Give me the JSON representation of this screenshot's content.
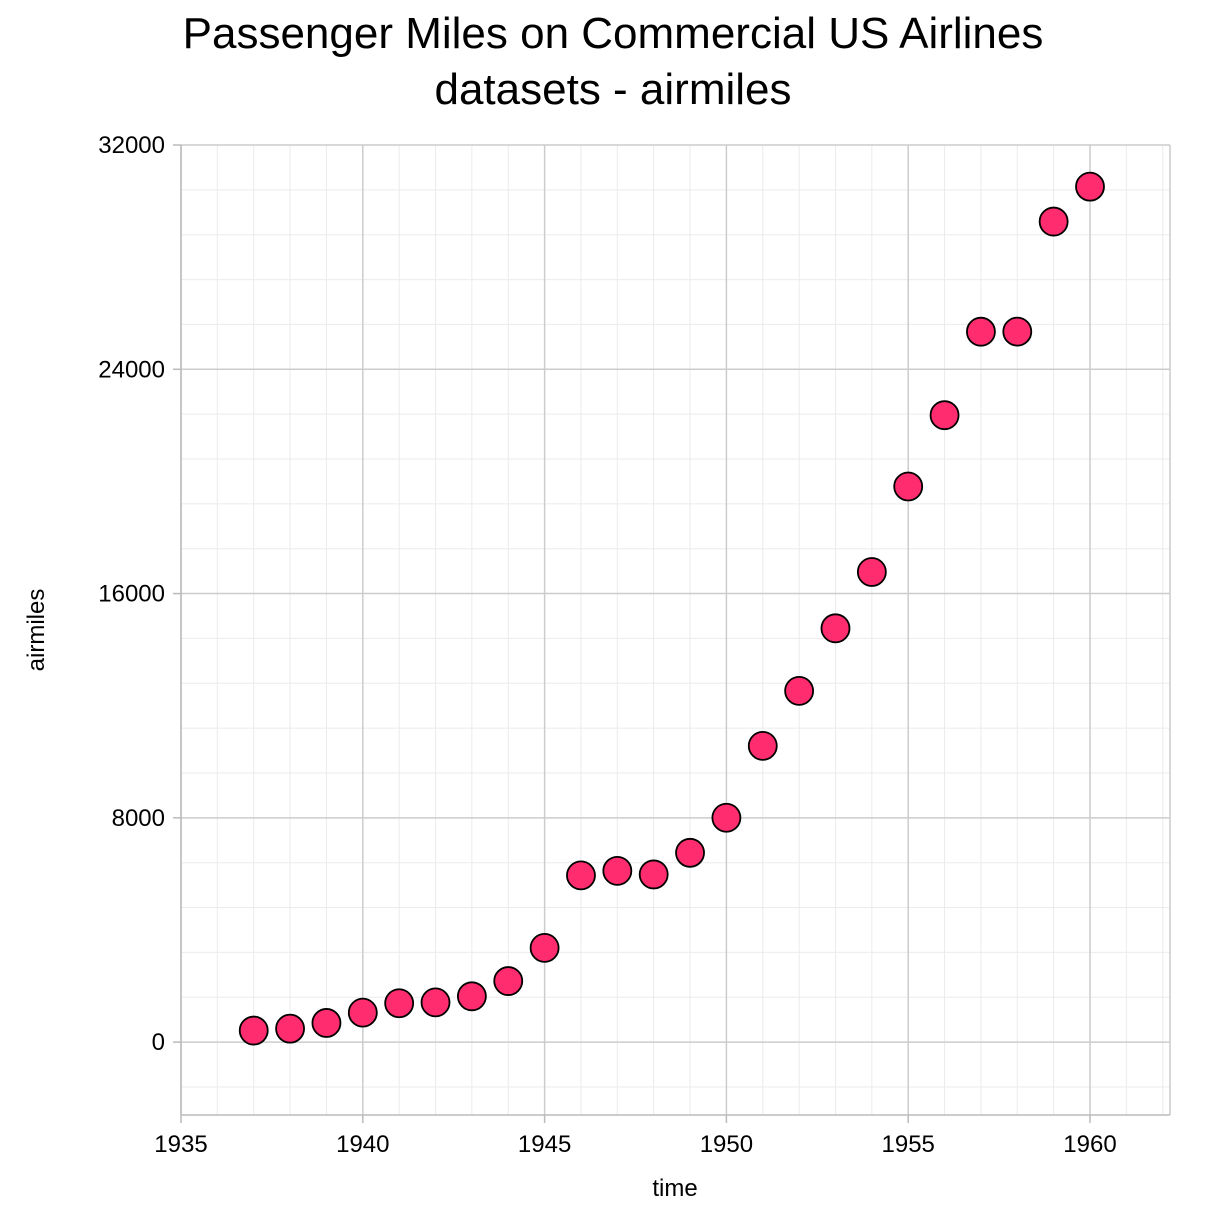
{
  "chart_data": {
    "type": "scatter",
    "title": "Passenger Miles on Commercial US Airlines",
    "subtitle": "datasets - airmiles",
    "xlabel": "time",
    "ylabel": "airmiles",
    "xlim": [
      1935,
      1962.2
    ],
    "ylim": [
      -2600,
      32000
    ],
    "x_ticks": [
      1935,
      1940,
      1945,
      1950,
      1955,
      1960
    ],
    "x_tick_labels": [
      "1935",
      "1940",
      "1945",
      "1950",
      "1955",
      "1960"
    ],
    "y_ticks": [
      0,
      8000,
      16000,
      24000,
      32000
    ],
    "y_tick_labels": [
      "0",
      "8000",
      "16000",
      "24000",
      "32000"
    ],
    "grid": true,
    "legend": "none",
    "marker_color": "#ff2d6f",
    "marker_edge_color": "#000000",
    "series": [
      {
        "x": [
          1937,
          1938,
          1939,
          1940,
          1941,
          1942,
          1943,
          1944,
          1945,
          1946,
          1947,
          1948,
          1949,
          1950,
          1951,
          1952,
          1953,
          1954,
          1955,
          1956,
          1957,
          1958,
          1959,
          1960
        ],
        "values": [
          412,
          480,
          683,
          1052,
          1385,
          1418,
          1634,
          2178,
          3362,
          5948,
          6109,
          5981,
          6753,
          8003,
          10566,
          12528,
          14760,
          16769,
          19819,
          22362,
          25340,
          25343,
          29269,
          30514
        ]
      }
    ]
  }
}
